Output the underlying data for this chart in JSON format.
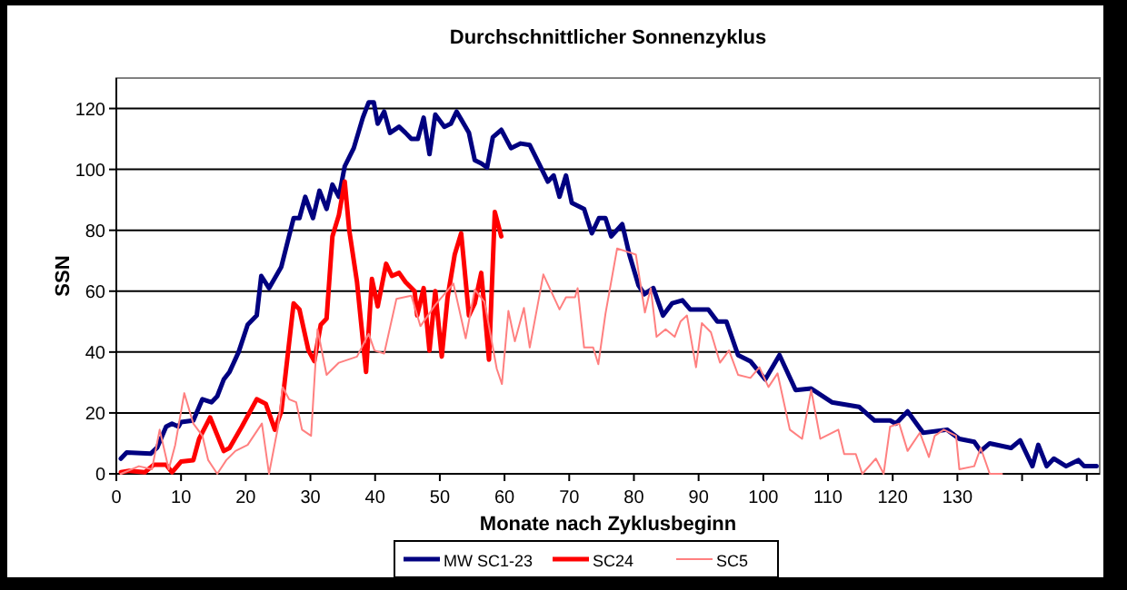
{
  "chart_data": {
    "type": "line",
    "title": "Durchschnittlicher Sonnenzyklus",
    "xlabel": "Monate nach Zyklusbeginn",
    "ylabel": "SSN",
    "xlim": [
      0,
      152
    ],
    "ylim": [
      0,
      130
    ],
    "xticks": [
      0,
      10,
      20,
      30,
      40,
      50,
      60,
      70,
      80,
      90,
      100,
      110,
      120,
      130,
      {
        "value": 140,
        "label": null
      },
      {
        "value": 150,
        "label": null
      }
    ],
    "yticks": [
      0,
      20,
      40,
      60,
      80,
      100,
      120
    ],
    "grid": "y",
    "legend": "bottom",
    "marker": "none",
    "line_style": "solid",
    "series": [
      {
        "name": "MW SC1-23",
        "color": "#000080",
        "x": [
          0.7,
          1.6,
          5.3,
          6.3,
          7.7,
          8.6,
          9.6,
          10,
          11.9,
          13.3,
          14.7,
          15.6,
          16.6,
          17.5,
          18.9,
          20.3,
          21.7,
          22.4,
          23.6,
          25.5,
          27.4,
          28.3,
          29.2,
          30.4,
          31.4,
          32.5,
          33.4,
          34.4,
          35.3,
          36.7,
          38.1,
          39,
          39.8,
          40.4,
          41.4,
          42.3,
          43.7,
          44.7,
          45.6,
          46.6,
          47.5,
          48.4,
          49.3,
          50.7,
          51.7,
          52.6,
          54.5,
          55.4,
          56.4,
          57.3,
          58.2,
          59.5,
          61,
          62.5,
          63.9,
          65.3,
          66.7,
          67.6,
          68.5,
          69.5,
          70.4,
          72.3,
          73.5,
          74.6,
          75.6,
          76.5,
          78.2,
          79.3,
          80.7,
          81.6,
          83,
          84.5,
          85.9,
          87.5,
          88.7,
          91.5,
          92.9,
          94.3,
          96.1,
          98,
          100.3,
          102.5,
          105,
          107.4,
          110.6,
          114.8,
          117.2,
          119.6,
          120.5,
          122.3,
          124.7,
          128.4,
          130.3,
          132.6,
          133.6,
          135,
          138.3,
          139.7,
          141.6,
          142.5,
          143.8,
          144.9,
          146.8,
          148.7,
          149.6,
          151.5
        ],
        "values": [
          5,
          7,
          6.6,
          8.6,
          15.5,
          16.5,
          15.5,
          17,
          17.5,
          24.5,
          23.5,
          25.5,
          31,
          33.5,
          40,
          49,
          52,
          65,
          61,
          68,
          84,
          84,
          91,
          84,
          93,
          87,
          95,
          91,
          101,
          107,
          117,
          122,
          122,
          115,
          119,
          112,
          114,
          112,
          110,
          110,
          117,
          105,
          118,
          114,
          115,
          119,
          112,
          103,
          102,
          100.6,
          110.6,
          113,
          107,
          108.5,
          108,
          102,
          96,
          98,
          91,
          98,
          89,
          87,
          79,
          84,
          84,
          78,
          82,
          72,
          62,
          59,
          61,
          52,
          56,
          57,
          54,
          54,
          50,
          50,
          39,
          37,
          31,
          39,
          27.5,
          28,
          23.5,
          22,
          17.5,
          17.5,
          16.5,
          20.5,
          13.5,
          14.5,
          11.5,
          10.5,
          7.5,
          10,
          8.5,
          11,
          2.5,
          9.5,
          2.5,
          5,
          2.5,
          4.5,
          2.5,
          2.5
        ]
      },
      {
        "name": "SC24",
        "color": "#ff0000",
        "x": [
          0.7,
          2,
          4.4,
          5.8,
          7.7,
          8.6,
          10,
          11.9,
          12.8,
          14.5,
          16.6,
          17.5,
          19.4,
          21.7,
          23.1,
          24.5,
          25.5,
          27.4,
          28.3,
          29.7,
          30.6,
          31.6,
          32.5,
          33.4,
          34.4,
          35.3,
          36,
          37.2,
          38.6,
          39.5,
          40.4,
          41.7,
          42.6,
          43.7,
          44.7,
          46.1,
          46.5,
          47.5,
          48.4,
          49.3,
          50.3,
          51.2,
          52.3,
          53.3,
          54.5,
          55.4,
          56.4,
          57.6,
          58.5,
          59.5
        ],
        "values": [
          0.5,
          1,
          0.5,
          3,
          3,
          0.5,
          4,
          4.5,
          11.5,
          18.5,
          7.5,
          8.5,
          15.5,
          24.5,
          23,
          14.5,
          20.5,
          56,
          54,
          40.5,
          37,
          49,
          51,
          78,
          85,
          96,
          80,
          63,
          33.5,
          64,
          55,
          69,
          65,
          66,
          63,
          60,
          52,
          61,
          40.5,
          60,
          38.5,
          58,
          72,
          79,
          52,
          56,
          66,
          37.5,
          86,
          78
        ]
      },
      {
        "name": "SC5",
        "color": "#ff8080",
        "x": [
          0.7,
          3.5,
          5.5,
          6.7,
          8.1,
          9.1,
          10.5,
          11.9,
          13.3,
          14.2,
          15.6,
          17,
          18.4,
          20.3,
          22.5,
          23.6,
          25,
          25.7,
          26.7,
          27.8,
          28.7,
          30.1,
          31.1,
          32.5,
          34.4,
          37.2,
          39,
          39.9,
          41.4,
          43.3,
          45.6,
          47,
          49.3,
          52.1,
          54,
          55.4,
          56.9,
          58.8,
          59.6,
          60.6,
          61.6,
          63,
          63.9,
          66,
          68.5,
          69.5,
          70.9,
          71.3,
          72.3,
          73.7,
          74.5,
          75.6,
          77.4,
          78.9,
          80.3,
          81.7,
          82.6,
          83.5,
          84.9,
          86.3,
          87.2,
          88.2,
          89.6,
          90.5,
          91.9,
          93.3,
          94.7,
          96.1,
          98,
          99.4,
          100.8,
          102.2,
          104.1,
          106,
          107.4,
          108.8,
          111.6,
          112.5,
          114.3,
          115.3,
          117.4,
          118.6,
          119.6,
          121,
          122.3,
          124.2,
          125.6,
          126.5,
          127.9,
          129.8,
          130.3,
          132.6,
          133.6,
          135,
          136.9
        ],
        "values": [
          0,
          2.5,
          1.5,
          14.5,
          1.5,
          9.5,
          26.5,
          16.5,
          12.5,
          4.5,
          0,
          4.5,
          7.5,
          9.5,
          16.5,
          0,
          15.5,
          28.5,
          24.5,
          23.5,
          14.5,
          12.5,
          47.5,
          32.5,
          36.5,
          38.5,
          46,
          40.5,
          39.5,
          57.5,
          58.5,
          48.5,
          55.5,
          62.5,
          44.5,
          60.5,
          56.5,
          34.5,
          29.5,
          53.5,
          43.5,
          54.5,
          41.5,
          65.5,
          54,
          58,
          58,
          61,
          41.5,
          41.5,
          36,
          52.5,
          74,
          73,
          72,
          53,
          61,
          45,
          47.5,
          45,
          50,
          52,
          35,
          49.5,
          46.5,
          36.5,
          40.5,
          32.5,
          31.5,
          35,
          28.5,
          33,
          14.5,
          11.5,
          27.5,
          11.5,
          14.5,
          6.5,
          6.5,
          0,
          5,
          0,
          15.5,
          16.5,
          7.5,
          13.5,
          5.5,
          12.5,
          14.5,
          12.5,
          1.5,
          2.5,
          8.5,
          0,
          0
        ]
      }
    ]
  }
}
